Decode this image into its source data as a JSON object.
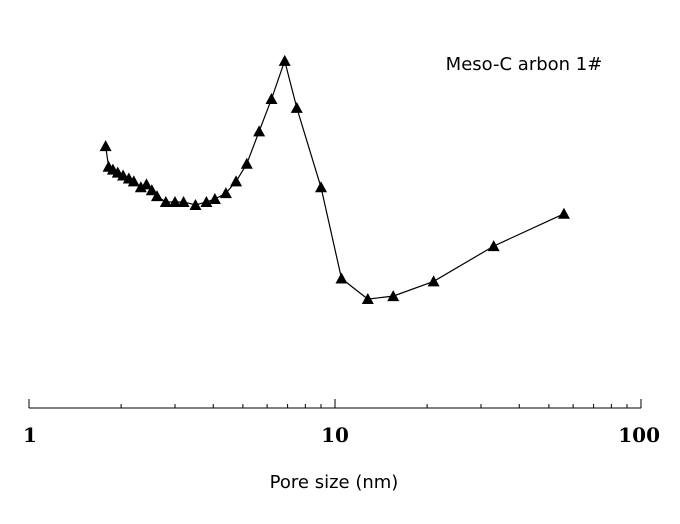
{
  "chart_data": {
    "type": "line",
    "title": "",
    "annotation": "Meso-C arbon 1#",
    "xlabel": "Pore size (nm)",
    "ylabel": "",
    "x_scale": "log",
    "xlim": [
      1,
      100
    ],
    "ylim": [
      0,
      1.02
    ],
    "x_ticks": [
      {
        "value": 1,
        "label": "1"
      },
      {
        "value": 10,
        "label": "10"
      },
      {
        "value": 100,
        "label": "100"
      }
    ],
    "grid": false,
    "marker": "triangle",
    "color": "#000000",
    "series": [
      {
        "x": [
          1.78,
          1.82,
          1.88,
          1.95,
          2.03,
          2.12,
          2.2,
          2.32,
          2.42,
          2.52,
          2.62,
          2.8,
          3.0,
          3.2,
          3.5,
          3.8,
          4.05,
          4.4,
          4.75,
          5.15,
          5.65,
          6.2,
          6.85,
          7.5,
          9.0,
          10.5,
          12.8,
          15.5,
          21.0,
          33.0,
          56.0
        ],
        "y": [
          0.7,
          0.63,
          0.62,
          0.61,
          0.6,
          0.59,
          0.58,
          0.56,
          0.57,
          0.55,
          0.53,
          0.51,
          0.51,
          0.51,
          0.5,
          0.51,
          0.52,
          0.54,
          0.58,
          0.64,
          0.75,
          0.86,
          0.99,
          0.83,
          0.56,
          0.25,
          0.18,
          0.19,
          0.24,
          0.36,
          0.47
        ]
      }
    ]
  }
}
